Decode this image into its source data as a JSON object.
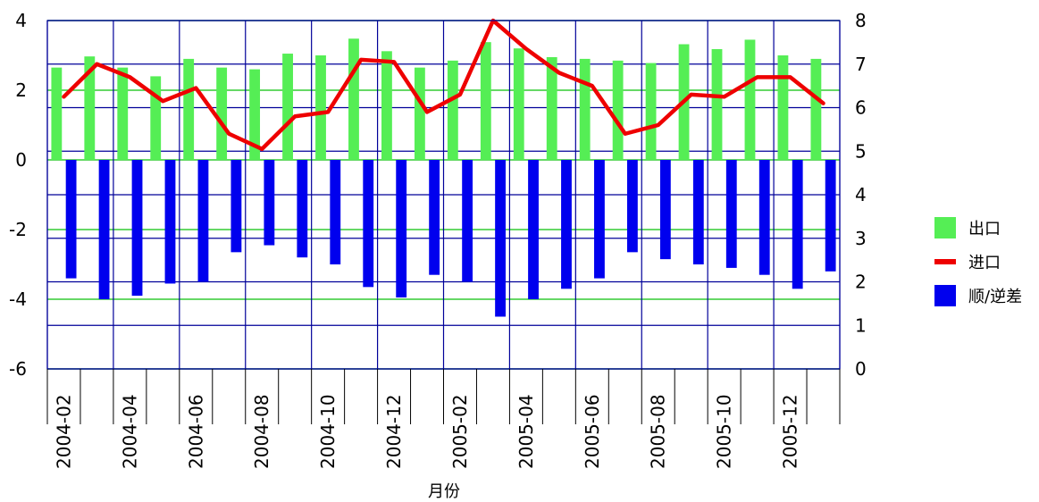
{
  "chart_data": {
    "type": "bar",
    "xlabel": "月份",
    "x_tick_labels": [
      "2004-02",
      "2004-04",
      "2004-06",
      "2004-08",
      "2004-10",
      "2004-12",
      "2005-02",
      "2005-04",
      "2005-06",
      "2005-08",
      "2005-10",
      "2005-12"
    ],
    "categories": [
      "2004-02",
      "2004-03",
      "2004-04",
      "2004-05",
      "2004-06",
      "2004-07",
      "2004-08",
      "2004-09",
      "2004-10",
      "2004-11",
      "2004-12",
      "2005-01",
      "2005-02",
      "2005-03",
      "2005-04",
      "2005-05",
      "2005-06",
      "2005-07",
      "2005-08",
      "2005-09",
      "2005-10",
      "2005-11",
      "2005-12",
      "2006-01"
    ],
    "left_axis": {
      "ylim": [
        -6,
        4
      ],
      "ticks": [
        -6,
        -4,
        -2,
        0,
        2,
        4
      ]
    },
    "right_axis": {
      "ylim": [
        0,
        8
      ],
      "ticks": [
        0,
        1,
        2,
        3,
        4,
        5,
        6,
        7,
        8
      ]
    },
    "series": [
      {
        "name": "出口",
        "kind": "bar",
        "axis": "left",
        "color": "#55ee55",
        "values": [
          2.65,
          2.97,
          2.65,
          2.4,
          2.9,
          2.65,
          2.6,
          3.05,
          3.0,
          3.48,
          3.12,
          2.65,
          2.85,
          3.38,
          3.2,
          2.95,
          2.9,
          2.85,
          2.78,
          3.32,
          3.18,
          3.45,
          3.0,
          2.9
        ]
      },
      {
        "name": "进口",
        "kind": "line",
        "axis": "right",
        "color": "#ee0000",
        "values": [
          6.25,
          7.0,
          6.7,
          6.15,
          6.45,
          5.4,
          5.05,
          5.8,
          5.9,
          7.1,
          7.05,
          5.9,
          6.3,
          8.0,
          7.35,
          6.8,
          6.5,
          5.4,
          5.6,
          6.3,
          6.25,
          6.7,
          6.7,
          6.1
        ]
      },
      {
        "name": "顺/逆差",
        "kind": "bar",
        "axis": "left",
        "color": "#0000ee",
        "values": [
          -3.4,
          -4.0,
          -3.9,
          -3.55,
          -3.5,
          -2.65,
          -2.45,
          -2.8,
          -3.0,
          -3.65,
          -3.95,
          -3.3,
          -3.5,
          -4.5,
          -4.0,
          -3.7,
          -3.4,
          -2.65,
          -2.85,
          -3.0,
          -3.1,
          -3.3,
          -3.7,
          -3.2
        ]
      }
    ],
    "legend": {
      "placement": "right",
      "items": [
        {
          "label": "出口",
          "color": "#55ee55",
          "kind": "bar"
        },
        {
          "label": "进口",
          "color": "#ee0000",
          "kind": "line"
        },
        {
          "label": "顺/逆差",
          "color": "#0000ee",
          "kind": "bar"
        }
      ]
    },
    "grid": true,
    "grid_colors": {
      "left": "#33cc33",
      "right_and_vertical": "#000099"
    }
  }
}
